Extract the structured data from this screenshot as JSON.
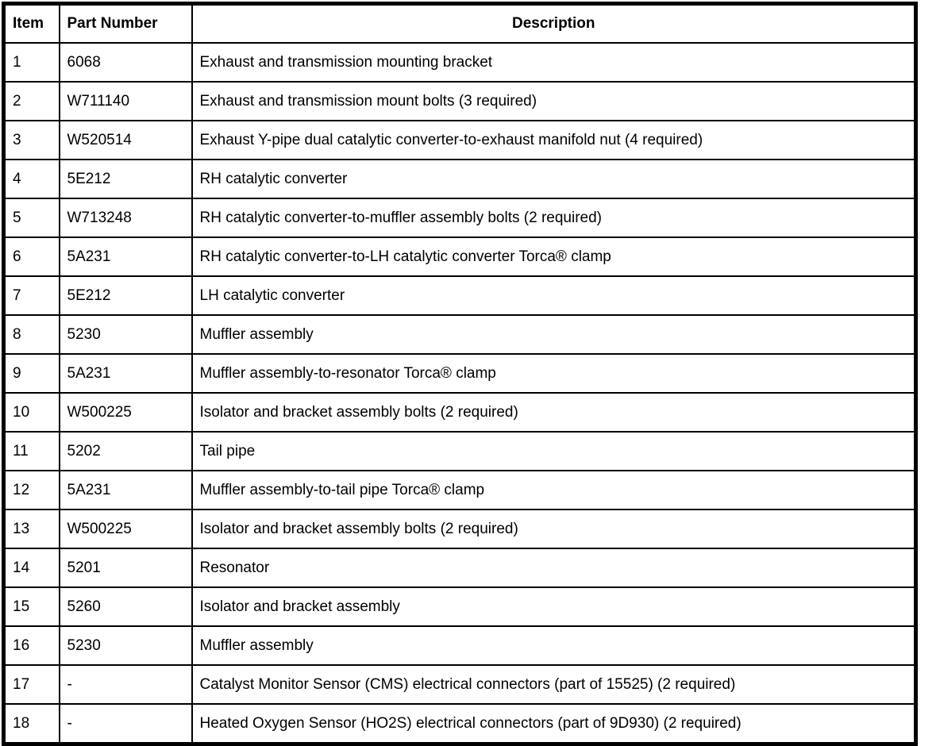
{
  "colors": {
    "border": "#000000",
    "background": "#ffffff",
    "text": "#000000"
  },
  "table": {
    "columns": [
      {
        "key": "item",
        "label": "Item"
      },
      {
        "key": "part_number",
        "label": "Part Number"
      },
      {
        "key": "description",
        "label": "Description"
      }
    ],
    "rows": [
      {
        "item": "1",
        "part_number": "6068",
        "description": "Exhaust and transmission mounting bracket"
      },
      {
        "item": "2",
        "part_number": "W711140",
        "description": "Exhaust and transmission mount bolts (3 required)"
      },
      {
        "item": "3",
        "part_number": "W520514",
        "description": "Exhaust Y-pipe dual catalytic converter-to-exhaust manifold nut (4 required)"
      },
      {
        "item": "4",
        "part_number": "5E212",
        "description": "RH catalytic converter"
      },
      {
        "item": "5",
        "part_number": "W713248",
        "description": "RH catalytic converter-to-muffler assembly bolts (2 required)"
      },
      {
        "item": "6",
        "part_number": "5A231",
        "description": "RH catalytic converter-to-LH catalytic converter Torca® clamp"
      },
      {
        "item": "7",
        "part_number": "5E212",
        "description": "LH catalytic converter"
      },
      {
        "item": "8",
        "part_number": "5230",
        "description": "Muffler assembly"
      },
      {
        "item": "9",
        "part_number": "5A231",
        "description": "Muffler assembly-to-resonator Torca® clamp"
      },
      {
        "item": "10",
        "part_number": "W500225",
        "description": "Isolator and bracket assembly bolts (2 required)"
      },
      {
        "item": "11",
        "part_number": "5202",
        "description": "Tail pipe"
      },
      {
        "item": "12",
        "part_number": "5A231",
        "description": "Muffler assembly-to-tail pipe Torca® clamp"
      },
      {
        "item": "13",
        "part_number": "W500225",
        "description": "Isolator and bracket assembly bolts (2 required)"
      },
      {
        "item": "14",
        "part_number": "5201",
        "description": "Resonator"
      },
      {
        "item": "15",
        "part_number": "5260",
        "description": "Isolator and bracket assembly"
      },
      {
        "item": "16",
        "part_number": "5230",
        "description": "Muffler assembly"
      },
      {
        "item": "17",
        "part_number": "-",
        "description": "Catalyst Monitor Sensor (CMS) electrical connectors (part of 15525) (2 required)"
      },
      {
        "item": "18",
        "part_number": "-",
        "description": "Heated Oxygen Sensor (HO2S) electrical connectors (part of 9D930) (2 required)"
      }
    ]
  }
}
